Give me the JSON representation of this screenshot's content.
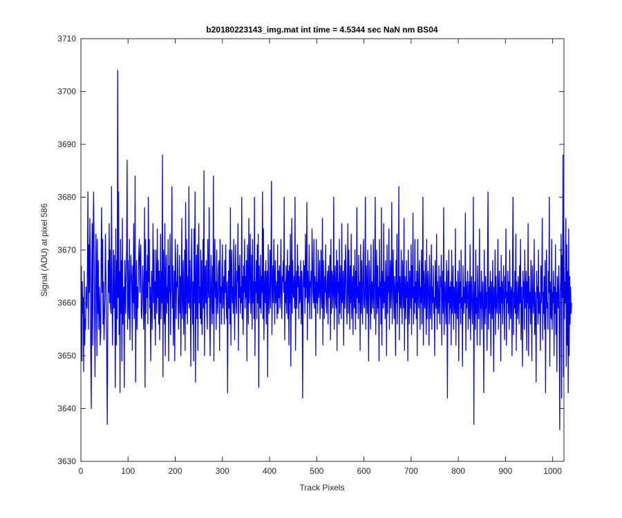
{
  "chart_data": {
    "type": "line",
    "title": "b20180223143_img.mat int time = 4.5344 sec  NaN nm BS04",
    "xlabel": "Track Pixels",
    "ylabel": "Signal (ADU) at pixel 586",
    "xlim": [
      0,
      1024
    ],
    "ylim": [
      3630,
      3710
    ],
    "x_ticks": [
      0,
      100,
      200,
      300,
      400,
      500,
      600,
      700,
      800,
      900,
      1000
    ],
    "y_ticks": [
      3630,
      3640,
      3650,
      3660,
      3670,
      3680,
      3690,
      3700,
      3710
    ],
    "grid": false,
    "series": [
      {
        "color": "#0000ff",
        "x_start": 1,
        "x_step": 1,
        "values": [
          3667,
          3649,
          3664,
          3658,
          3661,
          3647,
          3666,
          3652,
          3657,
          3655,
          3663,
          3660,
          3659,
          3668,
          3681,
          3655,
          3671,
          3662,
          3676,
          3668,
          3650,
          3640,
          3664,
          3675,
          3652,
          3673,
          3681,
          3671,
          3658,
          3646,
          3661,
          3673,
          3665,
          3650,
          3672,
          3658,
          3668,
          3655,
          3663,
          3660,
          3652,
          3654,
          3670,
          3678,
          3662,
          3672,
          3656,
          3664,
          3653,
          3657,
          3661,
          3673,
          3666,
          3659,
          3648,
          3637,
          3656,
          3668,
          3662,
          3675,
          3660,
          3670,
          3659,
          3658,
          3682,
          3664,
          3652,
          3660,
          3670,
          3659,
          3669,
          3660,
          3644,
          3674,
          3652,
          3668,
          3657,
          3704,
          3661,
          3681,
          3654,
          3666,
          3643,
          3672,
          3658,
          3668,
          3649,
          3676,
          3656,
          3662,
          3663,
          3644,
          3668,
          3663,
          3658,
          3667,
          3670,
          3687,
          3655,
          3668,
          3660,
          3657,
          3672,
          3653,
          3661,
          3669,
          3666,
          3663,
          3651,
          3667,
          3660,
          3675,
          3657,
          3662,
          3684,
          3645,
          3661,
          3668,
          3655,
          3663,
          3659,
          3666,
          3670,
          3672,
          3662,
          3668,
          3671,
          3658,
          3657,
          3661,
          3667,
          3664,
          3655,
          3660,
          3678,
          3644,
          3672,
          3658,
          3666,
          3661,
          3669,
          3656,
          3680,
          3664,
          3672,
          3659,
          3663,
          3649,
          3661,
          3666,
          3655,
          3664,
          3675,
          3660,
          3670,
          3657,
          3664,
          3652,
          3670,
          3663,
          3658,
          3674,
          3661,
          3668,
          3656,
          3666,
          3653,
          3662,
          3673,
          3657,
          3666,
          3660,
          3688,
          3646,
          3670,
          3661,
          3656,
          3675,
          3650,
          3664,
          3669,
          3658,
          3663,
          3660,
          3672,
          3649,
          3667,
          3662,
          3673,
          3654,
          3661,
          3664,
          3682,
          3659,
          3667,
          3652,
          3660,
          3666,
          3649,
          3672,
          3668,
          3657,
          3664,
          3663,
          3671,
          3660,
          3655,
          3661,
          3669,
          3658,
          3665,
          3650,
          3664,
          3676,
          3657,
          3662,
          3668,
          3654,
          3660,
          3670,
          3651,
          3679,
          3658,
          3672,
          3663,
          3656,
          3665,
          3660,
          3682,
          3659,
          3668,
          3662,
          3648,
          3666,
          3674,
          3660,
          3656,
          3664,
          3649,
          3674,
          3660,
          3681,
          3645,
          3663,
          3669,
          3657,
          3671,
          3651,
          3666,
          3675,
          3660,
          3663,
          3657,
          3670,
          3656,
          3668,
          3654,
          3662,
          3672,
          3659,
          3685,
          3650,
          3664,
          3667,
          3660,
          3668,
          3658,
          3655,
          3672,
          3663,
          3661,
          3678,
          3657,
          3650,
          3664,
          3669,
          3660,
          3656,
          3667,
          3658,
          3684,
          3649,
          3666,
          3672,
          3661,
          3664,
          3655,
          3670,
          3663,
          3658,
          3661,
          3667,
          3668,
          3651,
          3672,
          3660,
          3663,
          3656,
          3665,
          3671,
          3659,
          3662,
          3665,
          3656,
          3668,
          3662,
          3671,
          3661,
          3657,
          3664,
          3643,
          3660,
          3666,
          3659,
          3670,
          3656,
          3678,
          3652,
          3666,
          3670,
          3660,
          3663,
          3658,
          3672,
          3661,
          3653,
          3664,
          3671,
          3660,
          3658,
          3666,
          3664,
          3675,
          3651,
          3667,
          3661,
          3669,
          3658,
          3663,
          3660,
          3680,
          3657,
          3665,
          3654,
          3667,
          3662,
          3672,
          3659,
          3665,
          3661,
          3668,
          3649,
          3671,
          3663,
          3656,
          3676,
          3660,
          3666,
          3673,
          3658,
          3662,
          3669,
          3655,
          3672,
          3660,
          3664,
          3657,
          3680,
          3650,
          3664,
          3662,
          3668,
          3657,
          3671,
          3660,
          3673,
          3644,
          3667,
          3661,
          3659,
          3669,
          3658,
          3665,
          3662,
          3681,
          3657,
          3674,
          3653,
          3662,
          3666,
          3660,
          3668,
          3656,
          3664,
          3666,
          3646,
          3671,
          3662,
          3658,
          3663,
          3670,
          3659,
          3667,
          3683,
          3654,
          3662,
          3667,
          3660,
          3672,
          3664,
          3656,
          3668,
          3660,
          3661,
          3664,
          3657,
          3671,
          3658,
          3666,
          3661,
          3667,
          3659,
          3663,
          3672,
          3660,
          3657,
          3665,
          3664,
          3668,
          3662,
          3680,
          3653,
          3664,
          3660,
          3667,
          3658,
          3663,
          3670,
          3657,
          3666,
          3652,
          3667,
          3660,
          3673,
          3648,
          3664,
          3676,
          3658,
          3668,
          3662,
          3661,
          3665,
          3659,
          3680,
          3651,
          3662,
          3666,
          3659,
          3671,
          3663,
          3667,
          3657,
          3665,
          3660,
          3662,
          3668,
          3656,
          3666,
          3664,
          3642,
          3660,
          3668,
          3663,
          3667,
          3658,
          3673,
          3661,
          3664,
          3679,
          3653,
          3666,
          3660,
          3662,
          3671,
          3657,
          3664,
          3663,
          3666,
          3657,
          3674,
          3668,
          3662,
          3660,
          3672,
          3659,
          3665,
          3663,
          3650,
          3672,
          3660,
          3664,
          3658,
          3670,
          3661,
          3663,
          3668,
          3657,
          3660,
          3670,
          3662,
          3659,
          3676,
          3652,
          3668,
          3663,
          3657,
          3665,
          3662,
          3671,
          3660,
          3658,
          3664,
          3666,
          3656,
          3667,
          3661,
          3663,
          3669,
          3653,
          3672,
          3658,
          3666,
          3665,
          3659,
          3662,
          3680,
          3655,
          3663,
          3667,
          3660,
          3659,
          3670,
          3651,
          3668,
          3662,
          3664,
          3656,
          3672,
          3658,
          3662,
          3667,
          3657,
          3675,
          3660,
          3661,
          3666,
          3652,
          3663,
          3668,
          3659,
          3671,
          3666,
          3661,
          3656,
          3664,
          3675,
          3658,
          3670,
          3663,
          3655,
          3667,
          3660,
          3673,
          3657,
          3661,
          3665,
          3654,
          3667,
          3662,
          3659,
          3670,
          3655,
          3666,
          3658,
          3678,
          3661,
          3663,
          3657,
          3669,
          3660,
          3664,
          3651,
          3671,
          3658,
          3668,
          3662,
          3656,
          3667,
          3672,
          3660,
          3659,
          3663,
          3680,
          3655,
          3667,
          3662,
          3658,
          3670,
          3660,
          3649,
          3668,
          3666,
          3661,
          3655,
          3671,
          3658,
          3664,
          3663,
          3659,
          3672,
          3661,
          3657,
          3666,
          3680,
          3654,
          3662,
          3670,
          3658,
          3667,
          3659,
          3663,
          3649,
          3672,
          3661,
          3664,
          3656,
          3678,
          3652,
          3666,
          3662,
          3659,
          3675,
          3660,
          3664,
          3657,
          3668,
          3663,
          3650,
          3671,
          3658,
          3665,
          3662,
          3674,
          3655,
          3662,
          3668,
          3659,
          3663,
          3679,
          3656,
          3664,
          3670,
          3661,
          3657,
          3665,
          3662,
          3650,
          3668,
          3660,
          3673,
          3656,
          3664,
          3662,
          3682,
          3653,
          3665,
          3661,
          3659,
          3670,
          3660,
          3656,
          3668,
          3663,
          3659,
          3676,
          3651,
          3665,
          3662,
          3657,
          3668,
          3661,
          3664,
          3649,
          3670,
          3660,
          3656,
          3666,
          3663,
          3659,
          3671,
          3654,
          3667,
          3661,
          3677,
          3656,
          3663,
          3658,
          3672,
          3660,
          3664,
          3657,
          3666,
          3650,
          3672,
          3662,
          3659,
          3665,
          3668,
          3655,
          3663,
          3660,
          3670,
          3656,
          3664,
          3680,
          3652,
          3666,
          3661,
          3659,
          3668,
          3662,
          3654,
          3672,
          3657,
          3663,
          3666,
          3660,
          3652,
          3669,
          3661,
          3657,
          3664,
          3671,
          3655,
          3663,
          3660,
          3667,
          3658,
          3661,
          3650,
          3668,
          3662,
          3659,
          3673,
          3655,
          3664,
          3661,
          3658,
          3667,
          3660,
          3656,
          3665,
          3663,
          3669,
          3652,
          3662,
          3666,
          3658,
          3678,
          3654,
          3661,
          3664,
          3660,
          3656,
          3668,
          3662,
          3642,
          3666,
          3660,
          3670,
          3656,
          3663,
          3659,
          3664,
          3652,
          3670,
          3658,
          3661,
          3667,
          3655,
          3663,
          3660,
          3658,
          3674,
          3652,
          3664,
          3660,
          3657,
          3666,
          3662,
          3649,
          3668,
          3660,
          3664,
          3656,
          3670,
          3659,
          3661,
          3648,
          3667,
          3662,
          3658,
          3663,
          3660,
          3677,
          3651,
          3664,
          3659,
          3662,
          3666,
          3655,
          3660,
          3664,
          3657,
          3671,
          3653,
          3662,
          3665,
          3659,
          3656,
          3663,
          3680,
          3637,
          3660,
          3664,
          3655,
          3670,
          3658,
          3661,
          3652,
          3667,
          3660,
          3657,
          3663,
          3674,
          3652,
          3662,
          3659,
          3666,
          3655,
          3661,
          3664,
          3658,
          3643,
          3670,
          3660,
          3656,
          3665,
          3659,
          3662,
          3651,
          3668,
          3681,
          3655,
          3663,
          3658,
          3662,
          3666,
          3650,
          3664,
          3660,
          3657,
          3668,
          3661,
          3647,
          3663,
          3659,
          3670,
          3654,
          3665,
          3660,
          3658,
          3662,
          3672,
          3655,
          3661,
          3666,
          3658,
          3663,
          3649,
          3669,
          3660,
          3664,
          3656,
          3662,
          3667,
          3659,
          3653,
          3665,
          3661,
          3674,
          3652,
          3662,
          3660,
          3666,
          3658,
          3664,
          3655,
          3670,
          3660,
          3657,
          3663,
          3662,
          3650,
          3668,
          3680,
          3654,
          3662,
          3659,
          3666,
          3658,
          3673,
          3651,
          3664,
          3660,
          3657,
          3665,
          3662,
          3656,
          3667,
          3660,
          3672,
          3653,
          3663,
          3659,
          3648,
          3666,
          3661,
          3664,
          3655,
          3670,
          3659,
          3662,
          3666,
          3651,
          3664,
          3660,
          3675,
          3650,
          3665,
          3659,
          3662,
          3656,
          3668,
          3660,
          3649,
          3667,
          3663,
          3658,
          3661,
          3672,
          3654,
          3662,
          3659,
          3645,
          3666,
          3661,
          3663,
          3656,
          3670,
          3658,
          3662,
          3659,
          3651,
          3667,
          3660,
          3664,
          3676,
          3653,
          3662,
          3658,
          3665,
          3655,
          3668,
          3643,
          3661,
          3670,
          3659,
          3660,
          3655,
          3666,
          3662,
          3680,
          3648,
          3664,
          3659,
          3657,
          3672,
          3655,
          3662,
          3660,
          3666,
          3650,
          3663,
          3658,
          3671,
          3654,
          3662,
          3647,
          3665,
          3661,
          3659,
          3667,
          3656,
          3636,
          3662,
          3664,
          3673,
          3642,
          3669,
          3661,
          3688,
          3646,
          3672,
          3657,
          3664,
          3660,
          3676,
          3648,
          3671,
          3652,
          3666,
          3643,
          3674,
          3650,
          3665,
          3656,
          3663,
          3658,
          3660
        ]
      }
    ]
  }
}
